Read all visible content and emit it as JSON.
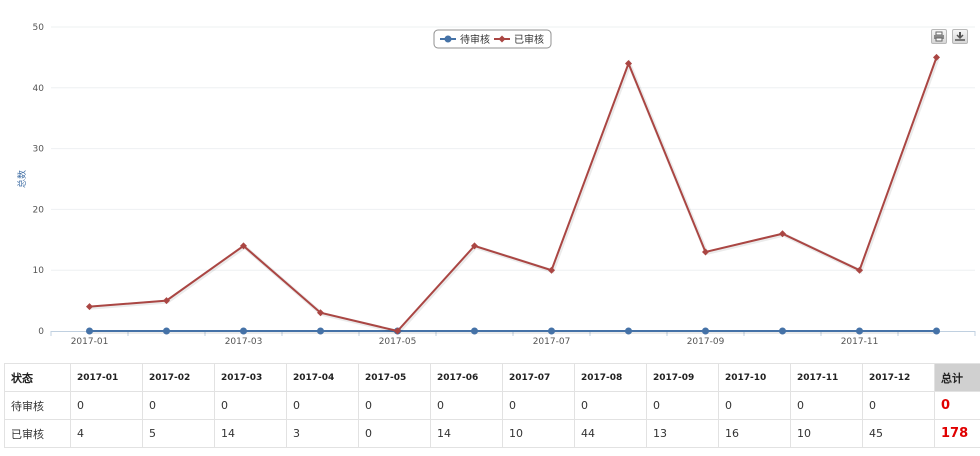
{
  "chart_data": {
    "type": "line",
    "categories": [
      "2017-01",
      "2017-02",
      "2017-03",
      "2017-04",
      "2017-05",
      "2017-06",
      "2017-07",
      "2017-08",
      "2017-09",
      "2017-10",
      "2017-11",
      "2017-12"
    ],
    "x_tick_labels": [
      "2017-01",
      "2017-03",
      "2017-05",
      "2017-07",
      "2017-09",
      "2017-11"
    ],
    "series": [
      {
        "name": "待审核",
        "color": "#4572a7",
        "marker": "circle",
        "values": [
          0,
          0,
          0,
          0,
          0,
          0,
          0,
          0,
          0,
          0,
          0,
          0
        ]
      },
      {
        "name": "已审核",
        "color": "#aa4643",
        "marker": "diamond",
        "values": [
          4,
          5,
          14,
          3,
          0,
          14,
          10,
          44,
          13,
          16,
          10,
          45
        ]
      }
    ],
    "ylabel": "总数",
    "ylim": [
      0,
      50
    ],
    "y_ticks": [
      0,
      10,
      20,
      30,
      40,
      50
    ],
    "grid": true,
    "legend_position": "top-center"
  },
  "toolbar": {
    "print_icon": "printer-icon",
    "download_icon": "download-icon"
  },
  "table": {
    "header_label": "状态",
    "total_label": "总计",
    "columns": [
      "2017-01",
      "2017-02",
      "2017-03",
      "2017-04",
      "2017-05",
      "2017-06",
      "2017-07",
      "2017-08",
      "2017-09",
      "2017-10",
      "2017-11",
      "2017-12"
    ],
    "rows": [
      {
        "label": "待审核",
        "values": [
          "0",
          "0",
          "0",
          "0",
          "0",
          "0",
          "0",
          "0",
          "0",
          "0",
          "0",
          "0"
        ],
        "total": "0"
      },
      {
        "label": "已审核",
        "values": [
          "4",
          "5",
          "14",
          "3",
          "0",
          "14",
          "10",
          "44",
          "13",
          "16",
          "10",
          "45"
        ],
        "total": "178"
      }
    ]
  }
}
